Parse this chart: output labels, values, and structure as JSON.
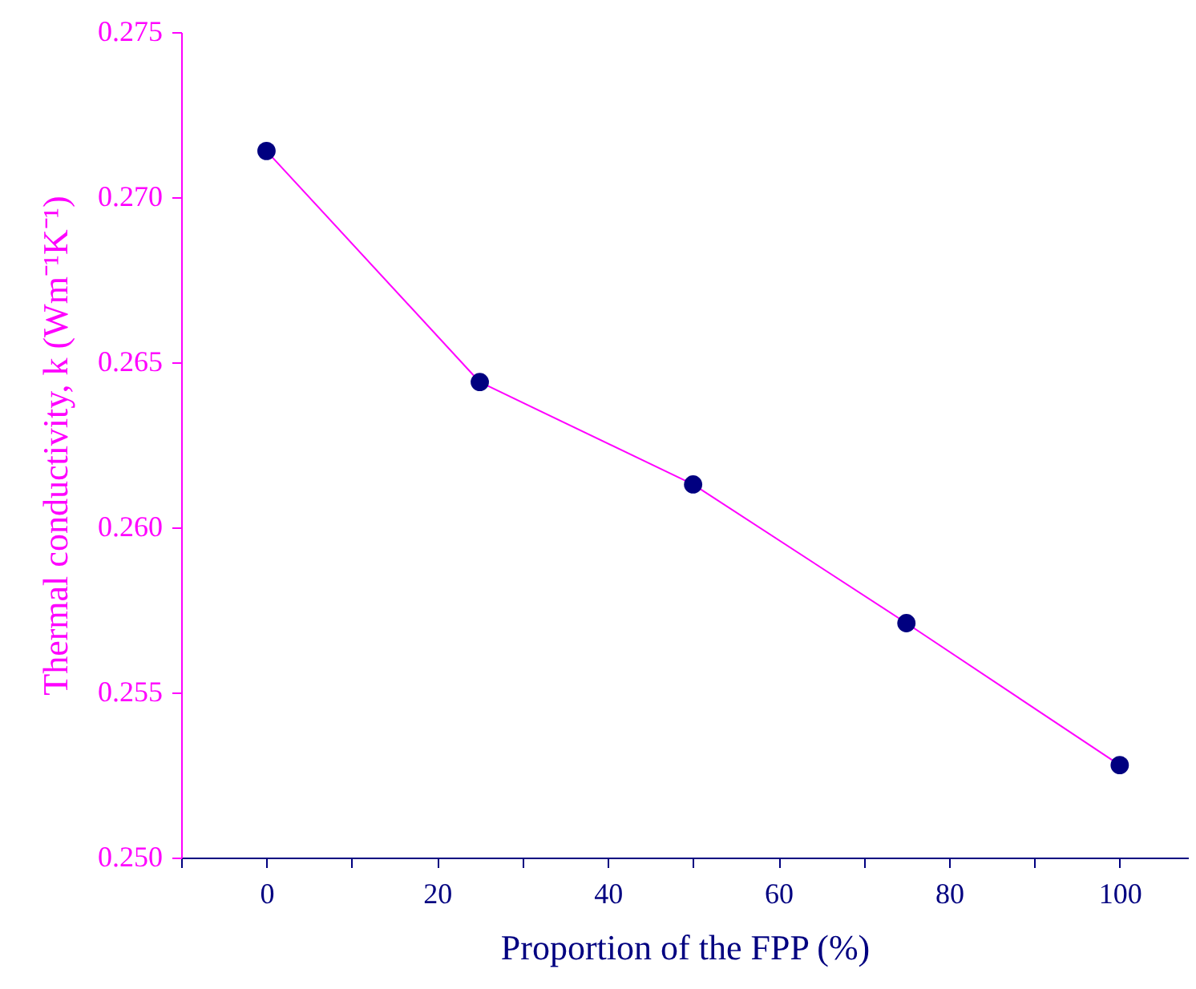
{
  "chart_data": {
    "type": "line",
    "xlabel": "Proportion of the FPP (%)",
    "ylabel": "Thermal conductivity, k (Wm⁻¹K⁻¹)",
    "x": [
      0,
      25,
      50,
      75,
      100
    ],
    "series": [
      {
        "color": "#ff00ff",
        "colors": [
          "#000080",
          "#000080",
          "#000080",
          "#000080",
          "#000080"
        ],
        "values": [
          0.2714,
          0.2644,
          0.2613,
          0.2571,
          0.2528
        ]
      }
    ],
    "xlim": [
      -10,
      108
    ],
    "xticks": [
      {
        "value": -10,
        "label": null
      },
      0,
      {
        "value": 10,
        "label": null
      },
      20,
      {
        "value": 30,
        "label": null
      },
      40,
      {
        "value": 50,
        "label": null
      },
      60,
      {
        "value": 70,
        "label": null
      },
      80,
      {
        "value": 90,
        "label": null
      },
      100
    ],
    "ylim": [
      0.25,
      0.275
    ],
    "yticks": [
      {
        "value": 0.25,
        "label": "0.250"
      },
      0.255,
      {
        "value": 0.26,
        "label": "0.260"
      },
      0.265,
      {
        "value": 0.27,
        "label": "0.270"
      },
      0.275
    ],
    "marker": "circle",
    "line_style": "solid",
    "grid": false
  }
}
